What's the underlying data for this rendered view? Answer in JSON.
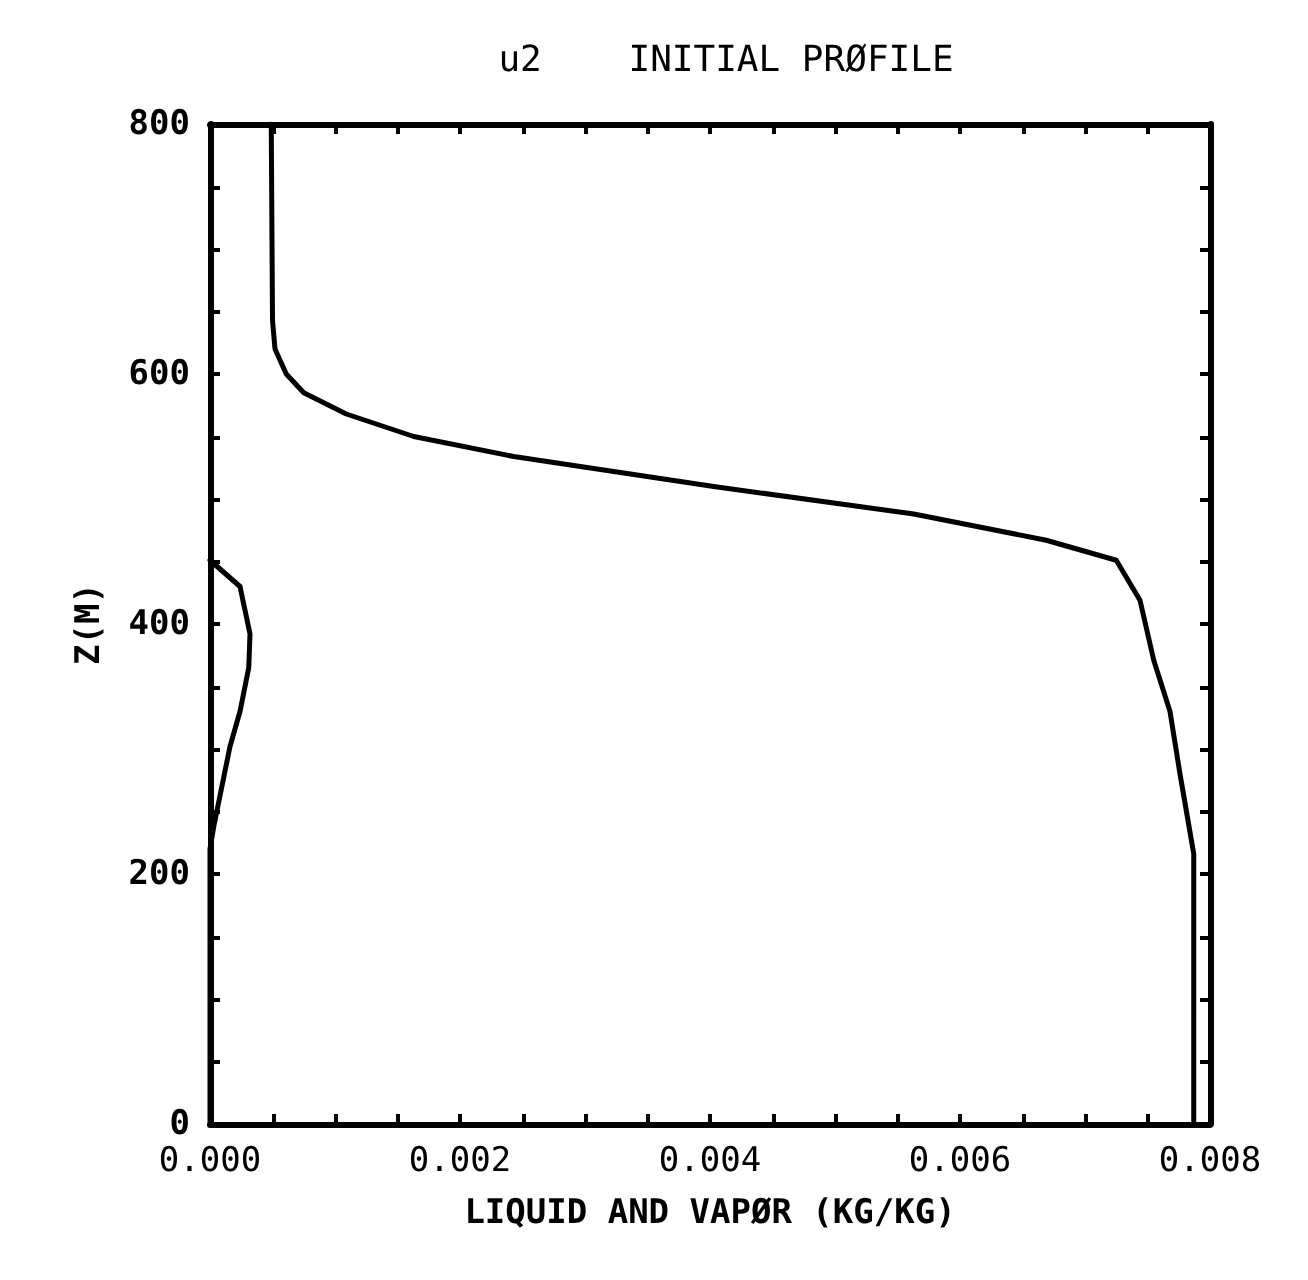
{
  "chart_data": {
    "type": "line",
    "title": "u2    INITIAL PRØFILE",
    "xlabel": "LIQUID AND VAPØR (KG/KG)",
    "ylabel": "Z(M)",
    "series": [
      {
        "color": "#000000",
        "x": [
          0.00787,
          0.00787,
          0.00776,
          0.00768,
          0.00755,
          0.00744,
          0.00725,
          0.00669,
          0.00563,
          0.00403,
          0.00243,
          0.00163,
          0.00109,
          0.00075,
          0.00061,
          0.00052,
          0.0005,
          0.00049
        ],
        "values": [
          0,
          216,
          280,
          330,
          371,
          419,
          451,
          467,
          488,
          510,
          534,
          550,
          568,
          585,
          600,
          620,
          643,
          800
        ]
      },
      {
        "color": "#000000",
        "x": [
          0,
          0,
          3e-05,
          0.00016,
          0.00024,
          0.00031,
          0.00032,
          0.00024,
          0
        ],
        "values": [
          0,
          220,
          238,
          302,
          330,
          365,
          392,
          430,
          451
        ]
      }
    ],
    "xlim": [
      0,
      0.008
    ],
    "xticks": [
      {
        "value": 0,
        "label": "0.000"
      },
      {
        "value": 0.0005,
        "label": null
      },
      {
        "value": 0.001,
        "label": null
      },
      {
        "value": 0.0015,
        "label": null
      },
      {
        "value": 0.002,
        "label": "0.002"
      },
      {
        "value": 0.0025,
        "label": null
      },
      {
        "value": 0.003,
        "label": null
      },
      {
        "value": 0.0035,
        "label": null
      },
      {
        "value": 0.004,
        "label": "0.004"
      },
      {
        "value": 0.0045,
        "label": null
      },
      {
        "value": 0.005,
        "label": null
      },
      {
        "value": 0.0055,
        "label": null
      },
      {
        "value": 0.006,
        "label": "0.006"
      },
      {
        "value": 0.0065,
        "label": null
      },
      {
        "value": 0.007,
        "label": null
      },
      {
        "value": 0.0075,
        "label": null
      },
      {
        "value": 0.008,
        "label": "0.008"
      }
    ],
    "ylim": [
      0,
      800
    ],
    "yticks": [
      0,
      {
        "value": 50,
        "label": null
      },
      {
        "value": 100,
        "label": null
      },
      {
        "value": 150,
        "label": null
      },
      200,
      {
        "value": 250,
        "label": null
      },
      {
        "value": 300,
        "label": null
      },
      {
        "value": 350,
        "label": null
      },
      400,
      {
        "value": 450,
        "label": null
      },
      {
        "value": 500,
        "label": null
      },
      {
        "value": 550,
        "label": null
      },
      600,
      {
        "value": 650,
        "label": null
      },
      {
        "value": 700,
        "label": null
      },
      {
        "value": 750,
        "label": null
      },
      800
    ],
    "grid": false,
    "marker": "none",
    "line_style": "solid"
  }
}
